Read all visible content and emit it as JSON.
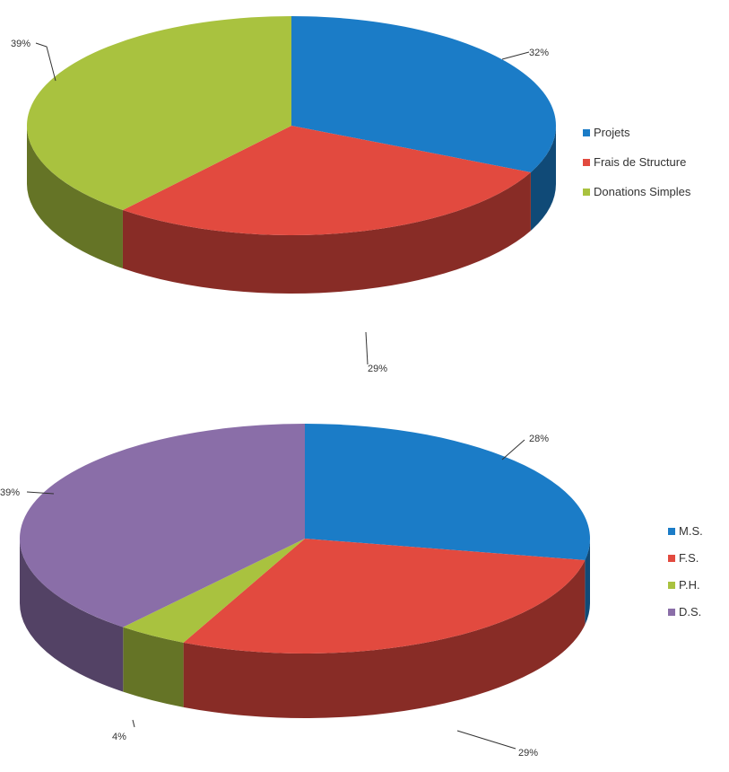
{
  "chart_data": [
    {
      "type": "pie",
      "style": "3d",
      "title": "",
      "legend_position": "right",
      "series": [
        {
          "name": "Projets",
          "value": 32,
          "label": "32%",
          "color": "#1b7cc7"
        },
        {
          "name": "Frais de Structure",
          "value": 29,
          "label": "29%",
          "color": "#e24a3f"
        },
        {
          "name": "Donations Simples",
          "value": 39,
          "label": "39%",
          "color": "#a9c23f"
        }
      ]
    },
    {
      "type": "pie",
      "style": "3d",
      "title": "",
      "legend_position": "right",
      "series": [
        {
          "name": "M.S.",
          "value": 28,
          "label": "28%",
          "color": "#1b7cc7"
        },
        {
          "name": "F.S.",
          "value": 29,
          "label": "29%",
          "color": "#e24a3f"
        },
        {
          "name": "P.H.",
          "value": 4,
          "label": "4%",
          "color": "#a9c23f"
        },
        {
          "name": "D.S.",
          "value": 39,
          "label": "39%",
          "color": "#8a6ea8"
        }
      ]
    }
  ]
}
